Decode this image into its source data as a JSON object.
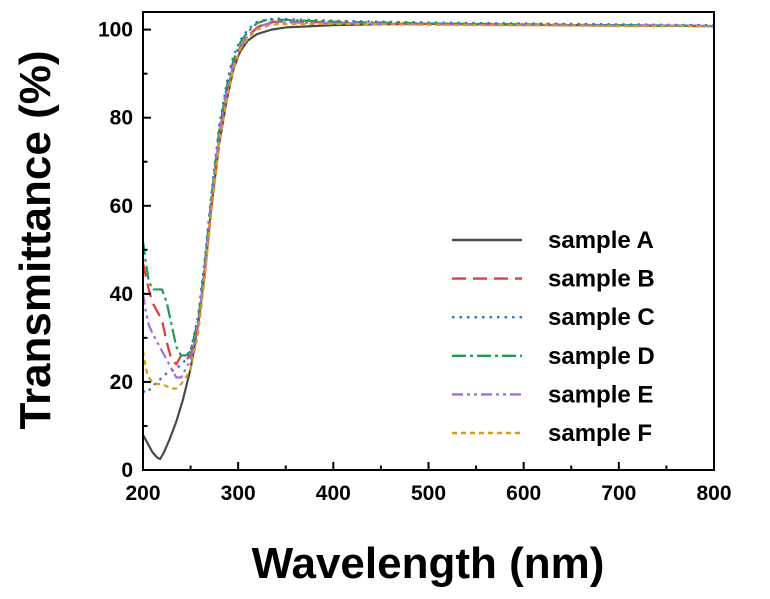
{
  "chart_data": {
    "type": "line",
    "xlabel": "Wavelength (nm)",
    "ylabel": "Transmittance (%)",
    "xlim": [
      200,
      800
    ],
    "ylim": [
      0,
      104
    ],
    "xticks": [
      200,
      300,
      400,
      500,
      600,
      700,
      800
    ],
    "yticks": [
      0,
      20,
      40,
      60,
      80,
      100
    ],
    "grid": false,
    "legend_position": "center-right",
    "series": [
      {
        "name": "sample A",
        "color": "#4a4a4a",
        "dash": "solid",
        "x": [
          200,
          205,
          210,
          215,
          218,
          222,
          228,
          235,
          242,
          250,
          258,
          265,
          272,
          280,
          288,
          295,
          302,
          310,
          320,
          335,
          350,
          370,
          400,
          450,
          500,
          550,
          600,
          650,
          700,
          750,
          800
        ],
        "y": [
          8,
          6,
          4,
          2.8,
          2.5,
          4,
          7,
          11,
          16,
          23,
          33,
          45,
          60,
          74,
          84,
          91,
          95,
          97.5,
          99,
          100,
          100.5,
          100.7,
          101,
          101.2,
          101.3,
          101.2,
          101.1,
          101,
          101,
          100.9,
          100.8
        ]
      },
      {
        "name": "sample B",
        "color": "#e8383b",
        "dash": "14,7",
        "x": [
          200,
          203,
          206,
          210,
          215,
          220,
          225,
          230,
          235,
          240,
          245,
          250,
          258,
          265,
          272,
          280,
          288,
          295,
          302,
          310,
          320,
          330,
          340,
          360,
          400,
          450,
          500,
          550,
          600,
          650,
          700,
          750,
          800
        ],
        "y": [
          47,
          44,
          41,
          38,
          36,
          34,
          29,
          25,
          24,
          26,
          25,
          26,
          33,
          45,
          60,
          75,
          85,
          92,
          96,
          98.5,
          100.5,
          101.5,
          101.8,
          101.8,
          101.6,
          101.4,
          101.3,
          101.2,
          101.1,
          101,
          100.9,
          100.9,
          100.8
        ]
      },
      {
        "name": "sample C",
        "color": "#2f6fd0",
        "dash": "2.5,5",
        "x": [
          200,
          203,
          206,
          210,
          215,
          220,
          225,
          230,
          235,
          240,
          245,
          250,
          258,
          265,
          272,
          280,
          288,
          295,
          302,
          310,
          320,
          330,
          340,
          360,
          400,
          450,
          500,
          550,
          600,
          650,
          700,
          750,
          800
        ],
        "y": [
          18,
          17.5,
          18,
          19,
          20,
          21,
          22,
          22.5,
          23,
          24,
          25,
          27,
          35,
          48,
          63,
          78,
          88,
          94,
          97.5,
          100,
          101.8,
          102.3,
          102.5,
          102.3,
          102,
          101.8,
          101.6,
          101.5,
          101.4,
          101.3,
          101.2,
          101.1,
          101
        ]
      },
      {
        "name": "sample D",
        "color": "#1e9a5a",
        "dash": "14,4,3,4",
        "x": [
          200,
          203,
          206,
          210,
          215,
          220,
          225,
          230,
          235,
          240,
          245,
          250,
          258,
          265,
          272,
          280,
          288,
          295,
          302,
          310,
          320,
          330,
          340,
          360,
          400,
          450,
          500,
          550,
          600,
          650,
          700,
          750,
          800
        ],
        "y": [
          52,
          47,
          43,
          41,
          41,
          41,
          38,
          33,
          28,
          26,
          26,
          27,
          34,
          47,
          62,
          77,
          87,
          93,
          97,
          99.5,
          101.5,
          102.2,
          102.3,
          102.1,
          101.8,
          101.6,
          101.4,
          101.3,
          101.2,
          101.1,
          101,
          100.9,
          100.8
        ]
      },
      {
        "name": "sample E",
        "color": "#a86ad6",
        "dash": "11,4,3,4,3,4",
        "x": [
          200,
          203,
          206,
          210,
          215,
          220,
          225,
          230,
          235,
          240,
          245,
          250,
          258,
          265,
          272,
          280,
          288,
          295,
          302,
          310,
          320,
          330,
          340,
          360,
          400,
          450,
          500,
          550,
          600,
          650,
          700,
          750,
          800
        ],
        "y": [
          40,
          36,
          33,
          31,
          29,
          27,
          25,
          23,
          21,
          21,
          23,
          25,
          33,
          46,
          61,
          76,
          86,
          92,
          96,
          98.5,
          100.5,
          101.3,
          101.6,
          101.6,
          101.5,
          101.3,
          101.2,
          101.1,
          101,
          101,
          100.9,
          100.9,
          100.8
        ]
      },
      {
        "name": "sample F",
        "color": "#d4a017",
        "dash": "5,4",
        "x": [
          200,
          203,
          206,
          210,
          215,
          220,
          225,
          230,
          235,
          240,
          245,
          250,
          258,
          265,
          272,
          280,
          288,
          295,
          302,
          310,
          320,
          330,
          340,
          360,
          400,
          450,
          500,
          550,
          600,
          650,
          700,
          750,
          800
        ],
        "y": [
          27,
          23,
          21,
          20,
          19.5,
          19.5,
          19,
          18.5,
          18.5,
          19.5,
          21,
          23,
          31,
          44,
          59,
          74,
          84,
          91,
          95.5,
          98,
          100,
          100.8,
          101.2,
          101.3,
          101.3,
          101.2,
          101.1,
          101,
          101,
          100.9,
          100.8,
          100.8,
          100.7
        ]
      }
    ]
  }
}
